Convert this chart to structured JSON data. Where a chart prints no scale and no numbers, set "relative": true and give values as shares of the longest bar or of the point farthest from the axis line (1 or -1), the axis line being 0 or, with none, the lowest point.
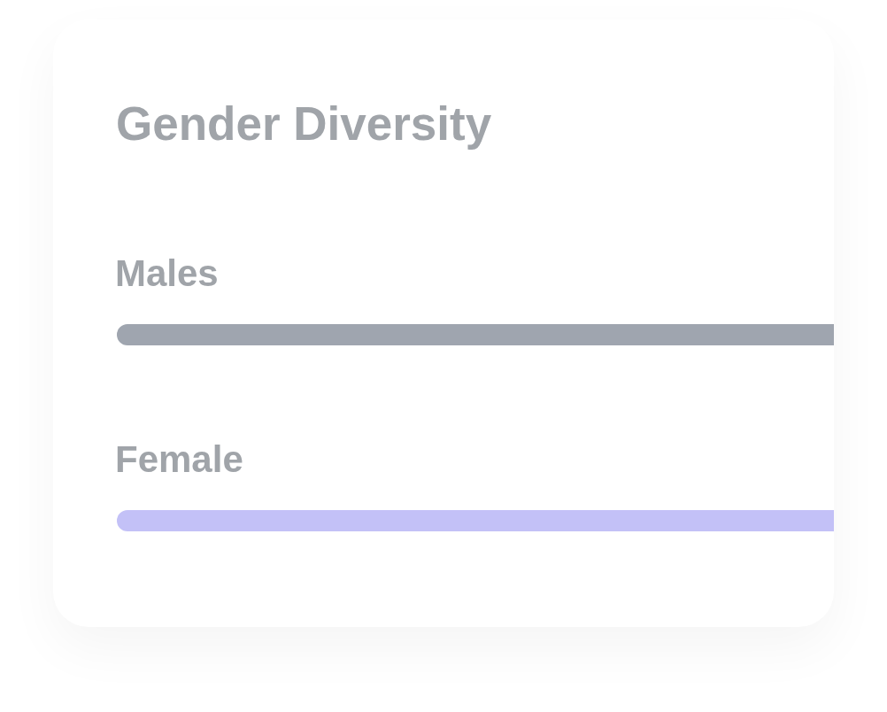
{
  "chart_data": {
    "type": "bar",
    "orientation": "horizontal",
    "relative": true,
    "title": "Gender Diversity",
    "categories": [
      "Males",
      "Female"
    ],
    "values": [
      1,
      1
    ],
    "colors": [
      "#9fa5af",
      "#c3c1f7"
    ]
  }
}
